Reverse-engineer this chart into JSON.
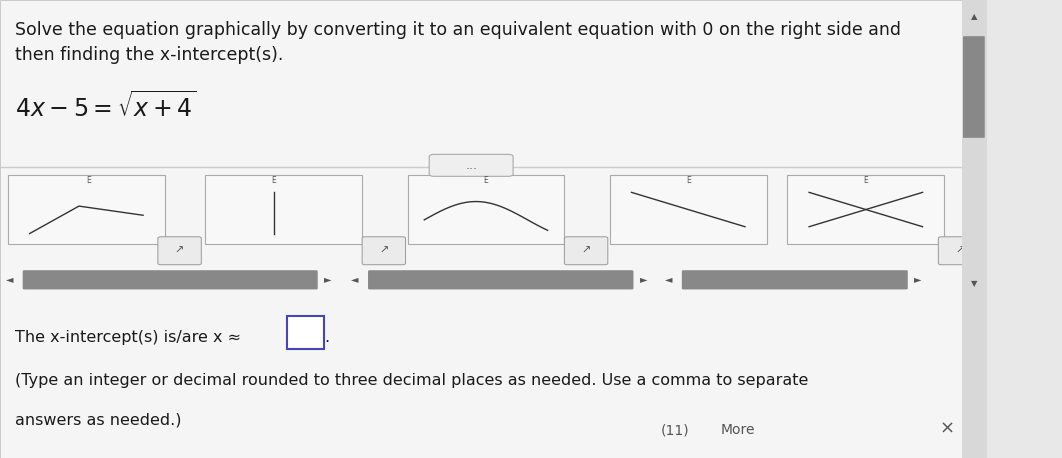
{
  "bg_color": "#e8e8e8",
  "panel_bg": "#f5f5f5",
  "title_text1": "Solve the equation graphically by converting it to an equivalent equation with 0 on the right side and",
  "title_text2": "then finding the x-intercept(s).",
  "intercept_text1": "The x-intercept(s) is/are x ≈ ",
  "intercept_text2": "(Type an integer or decimal rounded to three decimal places as needed. Use a comma to separate",
  "intercept_text3": "answers as needed.)",
  "more_text": "More",
  "dots_label": "...",
  "font_size_title": 12.5,
  "font_size_eq": 17,
  "font_size_body": 11.5,
  "text_color": "#1a1a1a",
  "gray_bar_color": "#888888",
  "light_gray": "#cccccc",
  "scrollbar_color": "#888888",
  "box_outline": "#4444bb",
  "arrow_left": "◄",
  "arrow_right": "►",
  "arrow_up": "▲",
  "arrow_down": "▼",
  "link_icon": "↗"
}
